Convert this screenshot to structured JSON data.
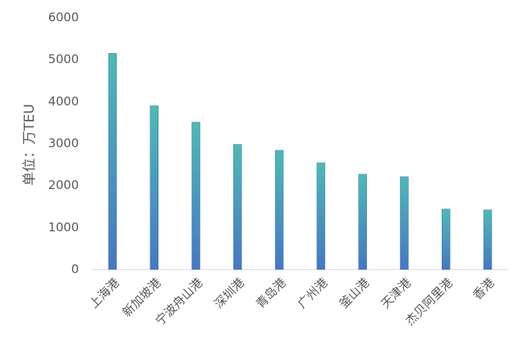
{
  "chart_data": {
    "type": "bar",
    "y_label": "单位：万TEU",
    "categories": [
      "上海港",
      "新加坡港",
      "宁波舟山港",
      "深圳港",
      "青岛港",
      "广州港",
      "釜山港",
      "天津港",
      "杰贝阿里港",
      "香港"
    ],
    "values": [
      5150,
      3900,
      3510,
      2980,
      2840,
      2540,
      2270,
      2210,
      1440,
      1420
    ],
    "gradient": [
      "#4dbab4",
      "#4677c4"
    ],
    "ylim": [
      0,
      6000
    ],
    "yticks": [
      0,
      1000,
      2000,
      3000,
      4000,
      5000,
      6000
    ],
    "grid": false
  }
}
